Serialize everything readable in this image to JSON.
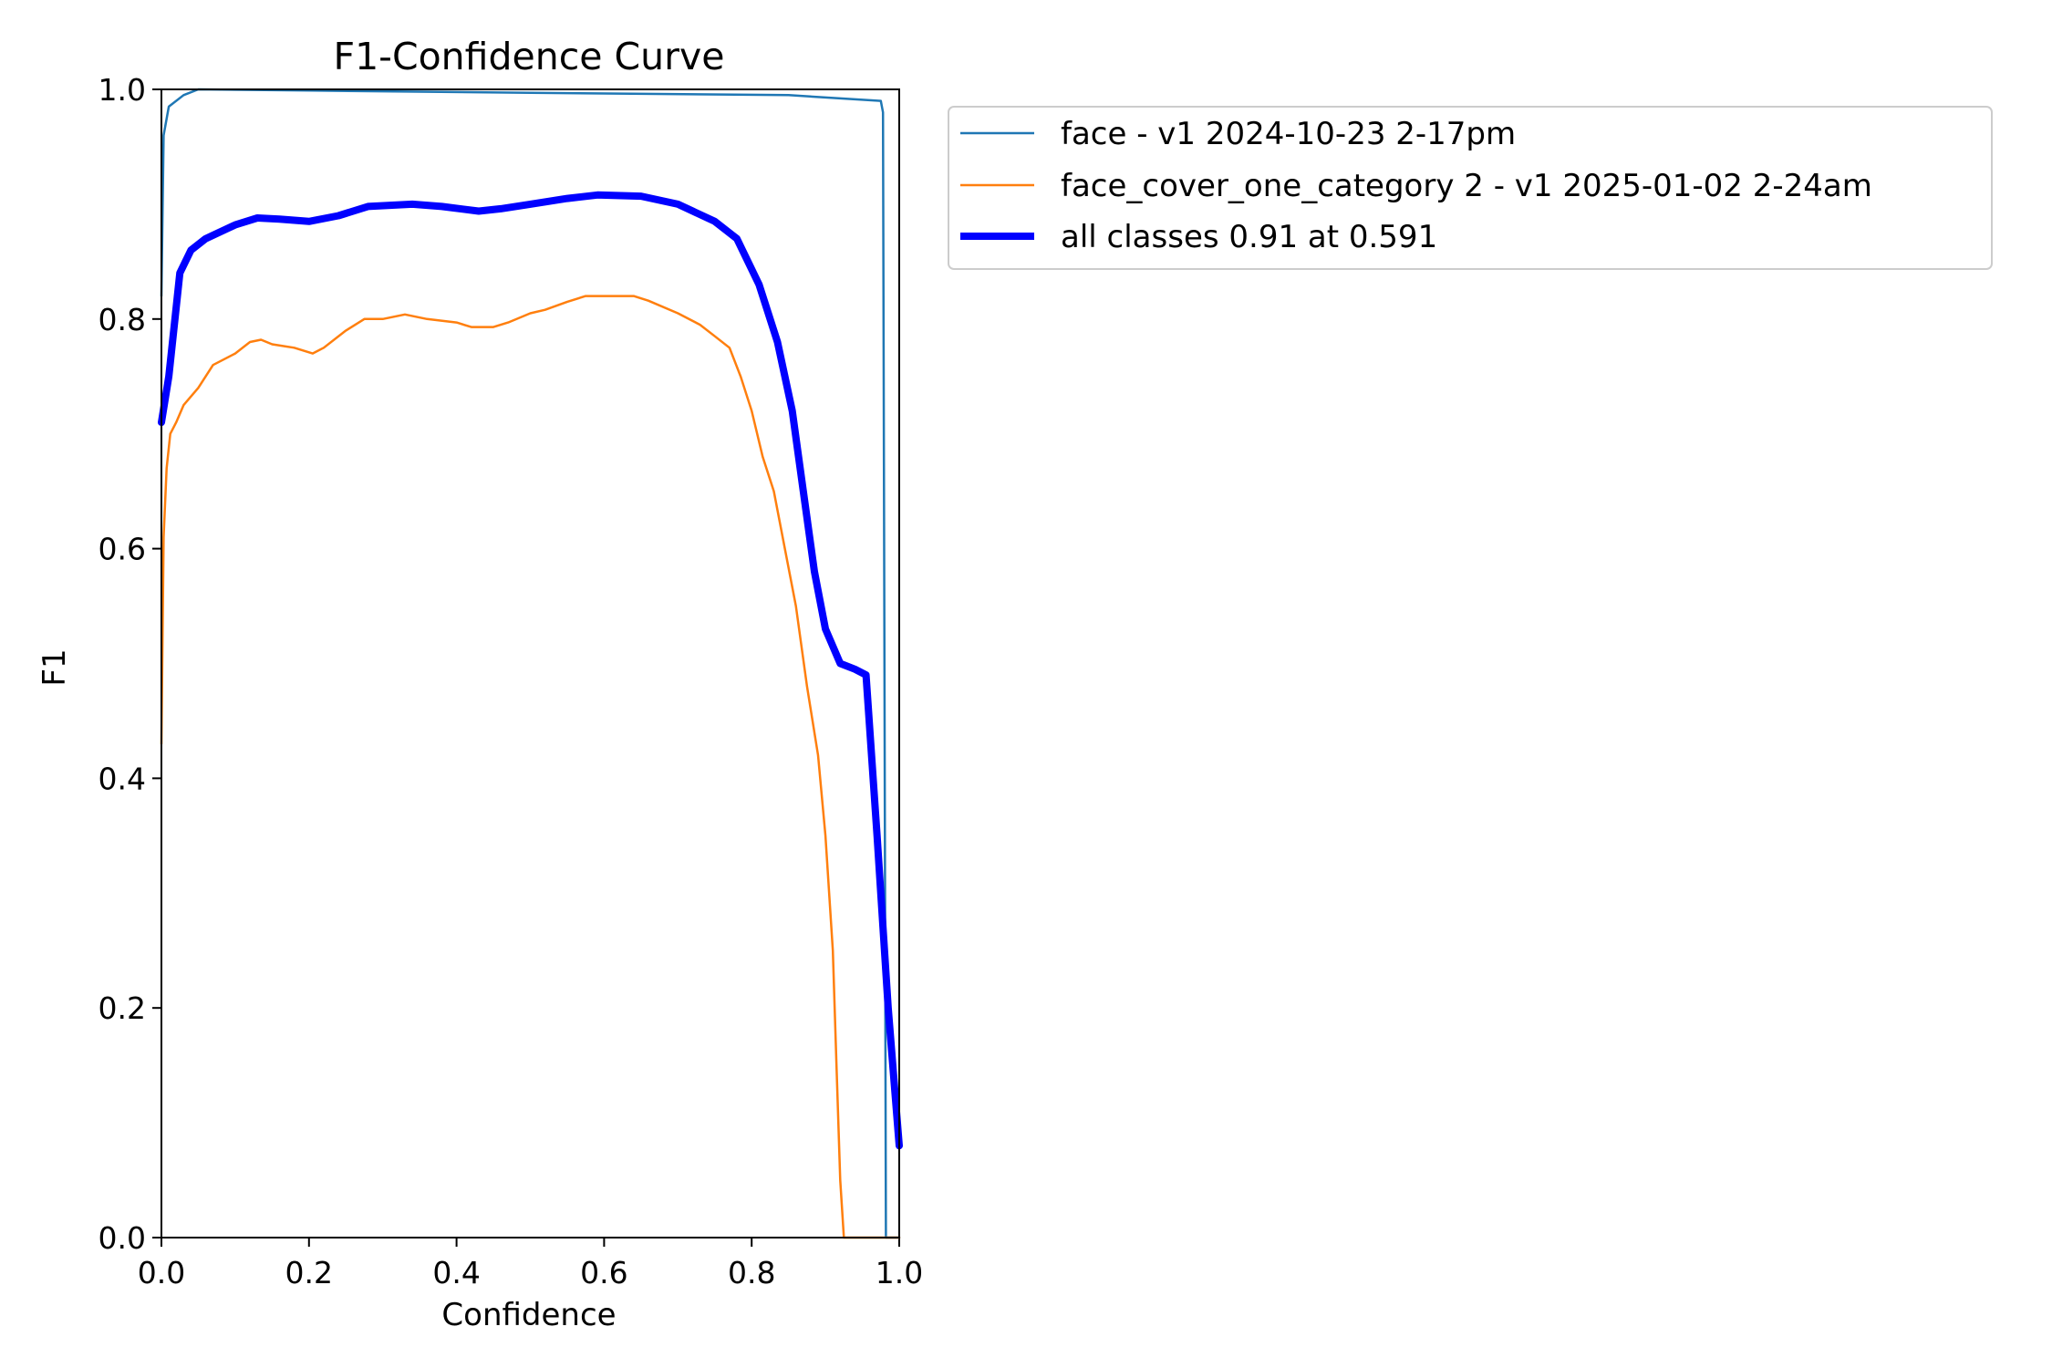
{
  "chart_data": {
    "type": "line",
    "title": "F1-Confidence Curve",
    "xlabel": "Confidence",
    "ylabel": "F1",
    "xlim": [
      0,
      1
    ],
    "ylim": [
      0,
      1
    ],
    "xticks": [
      "0.0",
      "0.2",
      "0.4",
      "0.6",
      "0.8",
      "1.0"
    ],
    "yticks": [
      "0.0",
      "0.2",
      "0.4",
      "0.6",
      "0.8",
      "1.0"
    ],
    "grid": false,
    "legend_position": "outside-top-right",
    "series": [
      {
        "name": "face - v1 2024-10-23 2-17pm",
        "color": "#1f77b4",
        "width": "thin",
        "points": [
          [
            0.0,
            0.82
          ],
          [
            0.003,
            0.96
          ],
          [
            0.01,
            0.985
          ],
          [
            0.03,
            0.995
          ],
          [
            0.05,
            1.0
          ],
          [
            0.2,
            0.999
          ],
          [
            0.5,
            0.997
          ],
          [
            0.85,
            0.995
          ],
          [
            0.975,
            0.99
          ],
          [
            0.978,
            0.98
          ],
          [
            0.98,
            0.5
          ],
          [
            0.982,
            0.0
          ],
          [
            1.0,
            0.0
          ]
        ]
      },
      {
        "name": "face_cover_one_category 2 - v1 2025-01-02 2-24am",
        "color": "#ff7f0e",
        "width": "thin",
        "points": [
          [
            0.0,
            0.43
          ],
          [
            0.003,
            0.61
          ],
          [
            0.007,
            0.67
          ],
          [
            0.012,
            0.7
          ],
          [
            0.02,
            0.71
          ],
          [
            0.03,
            0.725
          ],
          [
            0.05,
            0.74
          ],
          [
            0.07,
            0.76
          ],
          [
            0.1,
            0.77
          ],
          [
            0.12,
            0.78
          ],
          [
            0.135,
            0.782
          ],
          [
            0.15,
            0.778
          ],
          [
            0.18,
            0.775
          ],
          [
            0.205,
            0.77
          ],
          [
            0.22,
            0.775
          ],
          [
            0.25,
            0.79
          ],
          [
            0.275,
            0.8
          ],
          [
            0.3,
            0.8
          ],
          [
            0.33,
            0.804
          ],
          [
            0.36,
            0.8
          ],
          [
            0.4,
            0.797
          ],
          [
            0.42,
            0.793
          ],
          [
            0.45,
            0.793
          ],
          [
            0.47,
            0.797
          ],
          [
            0.5,
            0.805
          ],
          [
            0.52,
            0.808
          ],
          [
            0.55,
            0.815
          ],
          [
            0.575,
            0.82
          ],
          [
            0.6,
            0.82
          ],
          [
            0.64,
            0.82
          ],
          [
            0.66,
            0.816
          ],
          [
            0.7,
            0.805
          ],
          [
            0.73,
            0.795
          ],
          [
            0.75,
            0.785
          ],
          [
            0.77,
            0.775
          ],
          [
            0.785,
            0.75
          ],
          [
            0.8,
            0.72
          ],
          [
            0.815,
            0.68
          ],
          [
            0.83,
            0.65
          ],
          [
            0.845,
            0.6
          ],
          [
            0.86,
            0.55
          ],
          [
            0.875,
            0.48
          ],
          [
            0.89,
            0.42
          ],
          [
            0.9,
            0.35
          ],
          [
            0.91,
            0.25
          ],
          [
            0.915,
            0.15
          ],
          [
            0.92,
            0.05
          ],
          [
            0.925,
            0.0
          ],
          [
            1.0,
            0.0
          ]
        ]
      },
      {
        "name": "all classes 0.91 at 0.591",
        "color": "#0000ff",
        "width": "thick",
        "points": [
          [
            0.0,
            0.71
          ],
          [
            0.01,
            0.75
          ],
          [
            0.025,
            0.84
          ],
          [
            0.04,
            0.86
          ],
          [
            0.06,
            0.87
          ],
          [
            0.1,
            0.882
          ],
          [
            0.13,
            0.888
          ],
          [
            0.16,
            0.887
          ],
          [
            0.2,
            0.885
          ],
          [
            0.24,
            0.89
          ],
          [
            0.28,
            0.898
          ],
          [
            0.34,
            0.9
          ],
          [
            0.38,
            0.898
          ],
          [
            0.43,
            0.894
          ],
          [
            0.46,
            0.896
          ],
          [
            0.5,
            0.9
          ],
          [
            0.55,
            0.905
          ],
          [
            0.591,
            0.908
          ],
          [
            0.65,
            0.907
          ],
          [
            0.7,
            0.9
          ],
          [
            0.75,
            0.885
          ],
          [
            0.78,
            0.87
          ],
          [
            0.81,
            0.83
          ],
          [
            0.835,
            0.78
          ],
          [
            0.855,
            0.72
          ],
          [
            0.87,
            0.65
          ],
          [
            0.885,
            0.58
          ],
          [
            0.9,
            0.53
          ],
          [
            0.92,
            0.5
          ],
          [
            0.94,
            0.495
          ],
          [
            0.955,
            0.49
          ],
          [
            0.97,
            0.35
          ],
          [
            0.985,
            0.2
          ],
          [
            1.0,
            0.08
          ]
        ]
      }
    ]
  }
}
